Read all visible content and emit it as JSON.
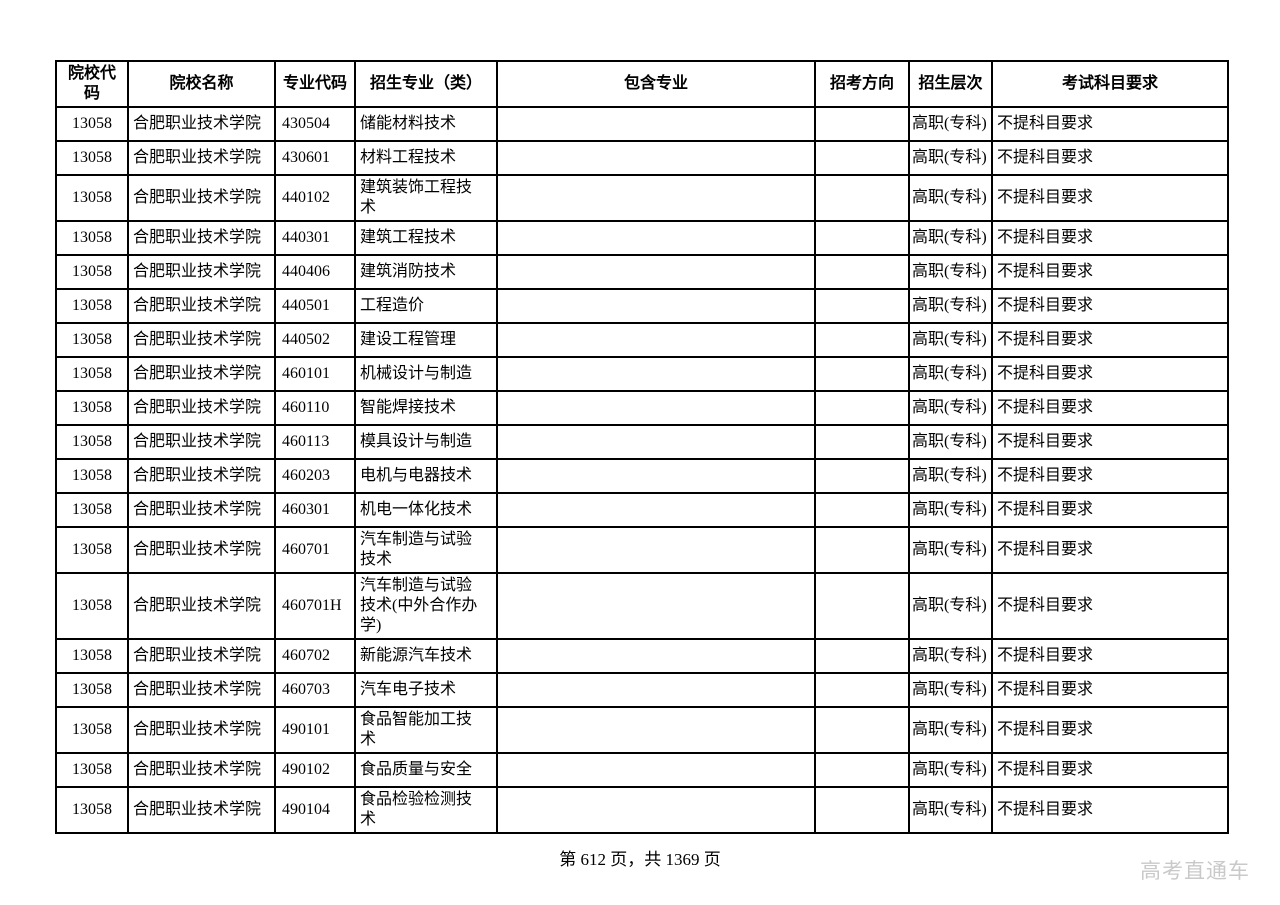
{
  "table": {
    "headers": [
      "院校代码",
      "院校名称",
      "专业代码",
      "招生专业（类）",
      "包含专业",
      "招考方向",
      "招生层次",
      "考试科目要求"
    ],
    "rows": [
      [
        "13058",
        "合肥职业技术学院",
        "430504",
        "储能材料技术",
        "",
        "",
        "高职(专科)",
        "不提科目要求"
      ],
      [
        "13058",
        "合肥职业技术学院",
        "430601",
        "材料工程技术",
        "",
        "",
        "高职(专科)",
        "不提科目要求"
      ],
      [
        "13058",
        "合肥职业技术学院",
        "440102",
        "建筑装饰工程技\n术",
        "",
        "",
        "高职(专科)",
        "不提科目要求"
      ],
      [
        "13058",
        "合肥职业技术学院",
        "440301",
        "建筑工程技术",
        "",
        "",
        "高职(专科)",
        "不提科目要求"
      ],
      [
        "13058",
        "合肥职业技术学院",
        "440406",
        "建筑消防技术",
        "",
        "",
        "高职(专科)",
        "不提科目要求"
      ],
      [
        "13058",
        "合肥职业技术学院",
        "440501",
        "工程造价",
        "",
        "",
        "高职(专科)",
        "不提科目要求"
      ],
      [
        "13058",
        "合肥职业技术学院",
        "440502",
        "建设工程管理",
        "",
        "",
        "高职(专科)",
        "不提科目要求"
      ],
      [
        "13058",
        "合肥职业技术学院",
        "460101",
        "机械设计与制造",
        "",
        "",
        "高职(专科)",
        "不提科目要求"
      ],
      [
        "13058",
        "合肥职业技术学院",
        "460110",
        "智能焊接技术",
        "",
        "",
        "高职(专科)",
        "不提科目要求"
      ],
      [
        "13058",
        "合肥职业技术学院",
        "460113",
        "模具设计与制造",
        "",
        "",
        "高职(专科)",
        "不提科目要求"
      ],
      [
        "13058",
        "合肥职业技术学院",
        "460203",
        "电机与电器技术",
        "",
        "",
        "高职(专科)",
        "不提科目要求"
      ],
      [
        "13058",
        "合肥职业技术学院",
        "460301",
        "机电一体化技术",
        "",
        "",
        "高职(专科)",
        "不提科目要求"
      ],
      [
        "13058",
        "合肥职业技术学院",
        "460701",
        "汽车制造与试验\n技术",
        "",
        "",
        "高职(专科)",
        "不提科目要求"
      ],
      [
        "13058",
        "合肥职业技术学院",
        "460701H",
        "汽车制造与试验\n技术(中外合作办\n学)",
        "",
        "",
        "高职(专科)",
        "不提科目要求"
      ],
      [
        "13058",
        "合肥职业技术学院",
        "460702",
        "新能源汽车技术",
        "",
        "",
        "高职(专科)",
        "不提科目要求"
      ],
      [
        "13058",
        "合肥职业技术学院",
        "460703",
        "汽车电子技术",
        "",
        "",
        "高职(专科)",
        "不提科目要求"
      ],
      [
        "13058",
        "合肥职业技术学院",
        "490101",
        "食品智能加工技\n术",
        "",
        "",
        "高职(专科)",
        "不提科目要求"
      ],
      [
        "13058",
        "合肥职业技术学院",
        "490102",
        "食品质量与安全",
        "",
        "",
        "高职(专科)",
        "不提科目要求"
      ],
      [
        "13058",
        "合肥职业技术学院",
        "490104",
        "食品检验检测技\n术",
        "",
        "",
        "高职(专科)",
        "不提科目要求"
      ]
    ],
    "column_keys": [
      "college-code",
      "college-name",
      "major-code",
      "major-name",
      "included-majors",
      "exam-direction",
      "enrollment-level",
      "subject-requirements"
    ]
  },
  "footer": {
    "page_info": "第 612 页，共 1369 页",
    "watermark": "高考直通车"
  }
}
